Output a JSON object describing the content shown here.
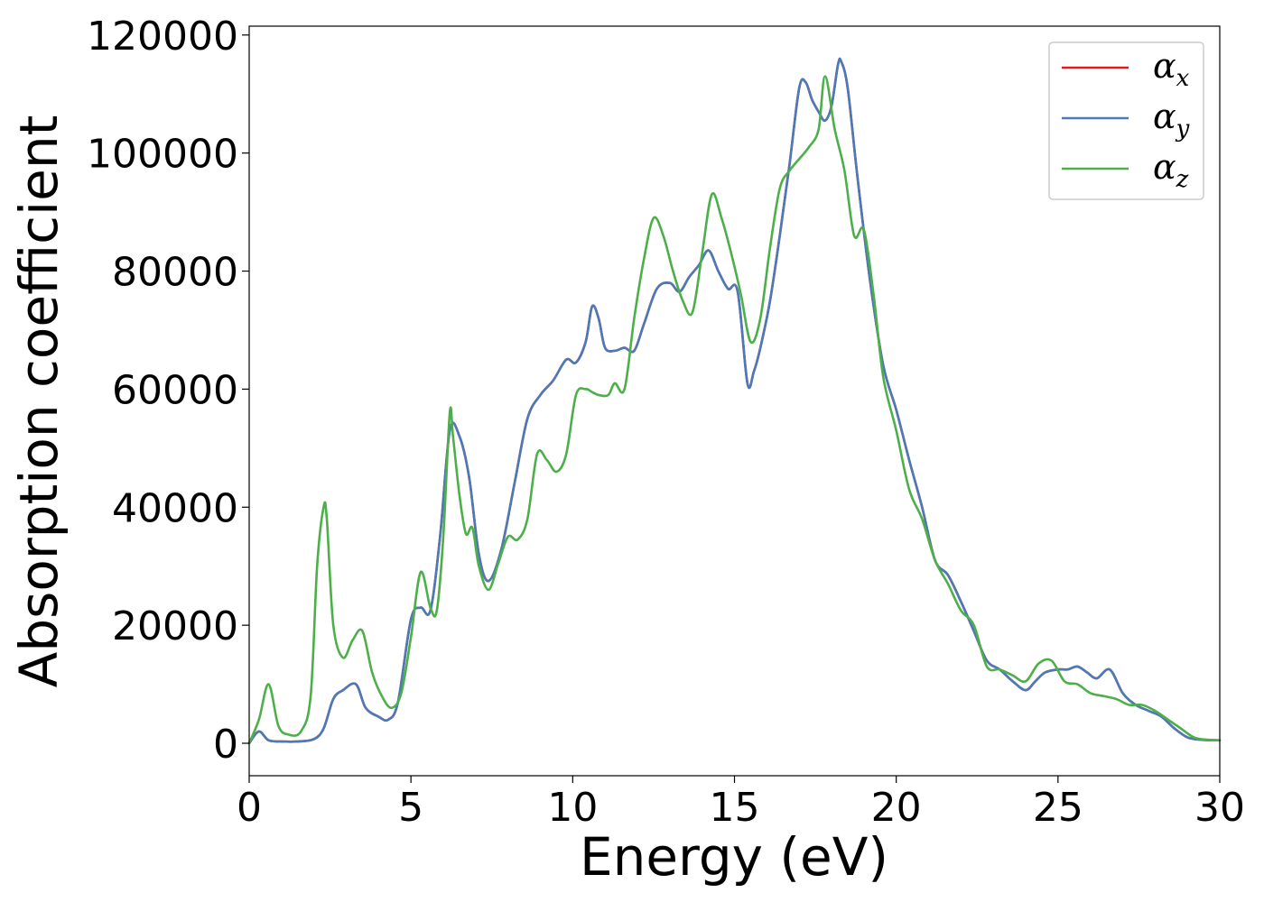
{
  "chart_data": {
    "type": "line",
    "title": "",
    "xlabel": "Energy (eV)",
    "ylabel": "Absorption coefficient",
    "xlim": [
      0,
      30
    ],
    "ylim": [
      -5500,
      121500
    ],
    "xticks": [
      0,
      5,
      10,
      15,
      20,
      25,
      30
    ],
    "yticks": [
      0,
      20000,
      40000,
      60000,
      80000,
      100000,
      120000
    ],
    "grid": false,
    "legend_position": "top-right",
    "series": [
      {
        "name": "αx",
        "symbol": "α",
        "subscript": "x",
        "color": "#e41a1c",
        "x": [
          0,
          0.3,
          0.6,
          1.0,
          1.5,
          2.0,
          2.3,
          2.6,
          2.9,
          3.3,
          3.6,
          4.0,
          4.3,
          4.6,
          5.0,
          5.3,
          5.6,
          5.9,
          6.2,
          6.5,
          6.8,
          7.1,
          7.4,
          7.8,
          8.2,
          8.6,
          9.0,
          9.4,
          9.8,
          10.1,
          10.4,
          10.6,
          10.8,
          11.0,
          11.3,
          11.6,
          11.9,
          12.2,
          12.6,
          13.0,
          13.3,
          13.6,
          13.9,
          14.2,
          14.5,
          14.8,
          15.1,
          15.4,
          15.6,
          15.8,
          16.1,
          16.4,
          16.7,
          17.0,
          17.2,
          17.4,
          17.6,
          17.8,
          18.0,
          18.2,
          18.3,
          18.5,
          18.8,
          19.2,
          19.6,
          20.0,
          20.4,
          20.8,
          21.2,
          21.6,
          22.0,
          22.4,
          22.8,
          23.2,
          23.6,
          24.0,
          24.3,
          24.6,
          25.0,
          25.3,
          25.6,
          25.9,
          26.2,
          26.6,
          27.0,
          27.4,
          27.8,
          28.2,
          28.6,
          29.0,
          29.4,
          30.0
        ],
        "y": [
          0,
          2000,
          500,
          300,
          300,
          700,
          2500,
          7500,
          9000,
          10000,
          6000,
          4500,
          4000,
          7000,
          21000,
          23000,
          22500,
          35000,
          53000,
          52000,
          45000,
          32000,
          27500,
          33000,
          44000,
          55000,
          59000,
          61500,
          65000,
          64500,
          68000,
          74000,
          72000,
          67000,
          66500,
          67000,
          66500,
          71000,
          77000,
          78000,
          76500,
          79000,
          81000,
          83500,
          80000,
          77000,
          76500,
          61000,
          63000,
          67000,
          75000,
          86000,
          98000,
          111000,
          112000,
          109000,
          107000,
          105500,
          108000,
          115000,
          115500,
          111000,
          96000,
          78000,
          64000,
          56500,
          48000,
          40000,
          31000,
          28500,
          24000,
          19000,
          14000,
          12500,
          10500,
          9000,
          10500,
          12000,
          12500,
          12500,
          13000,
          12000,
          11000,
          12500,
          8500,
          6500,
          5500,
          4500,
          2500,
          1000,
          600,
          500
        ]
      },
      {
        "name": "αy",
        "symbol": "α",
        "subscript": "y",
        "color": "#4a7ab7",
        "x": [
          0,
          0.3,
          0.6,
          1.0,
          1.5,
          2.0,
          2.3,
          2.6,
          2.9,
          3.3,
          3.6,
          4.0,
          4.3,
          4.6,
          5.0,
          5.3,
          5.6,
          5.9,
          6.2,
          6.5,
          6.8,
          7.1,
          7.4,
          7.8,
          8.2,
          8.6,
          9.0,
          9.4,
          9.8,
          10.1,
          10.4,
          10.6,
          10.8,
          11.0,
          11.3,
          11.6,
          11.9,
          12.2,
          12.6,
          13.0,
          13.3,
          13.6,
          13.9,
          14.2,
          14.5,
          14.8,
          15.1,
          15.4,
          15.6,
          15.8,
          16.1,
          16.4,
          16.7,
          17.0,
          17.2,
          17.4,
          17.6,
          17.8,
          18.0,
          18.2,
          18.3,
          18.5,
          18.8,
          19.2,
          19.6,
          20.0,
          20.4,
          20.8,
          21.2,
          21.6,
          22.0,
          22.4,
          22.8,
          23.2,
          23.6,
          24.0,
          24.3,
          24.6,
          25.0,
          25.3,
          25.6,
          25.9,
          26.2,
          26.6,
          27.0,
          27.4,
          27.8,
          28.2,
          28.6,
          29.0,
          29.4,
          30.0
        ],
        "y": [
          0,
          2000,
          500,
          300,
          300,
          700,
          2500,
          7500,
          9000,
          10000,
          6000,
          4500,
          4000,
          7000,
          21000,
          23000,
          22500,
          35000,
          53000,
          52000,
          45000,
          32000,
          27500,
          33000,
          44000,
          55000,
          59000,
          61500,
          65000,
          64500,
          68000,
          74000,
          72000,
          67000,
          66500,
          67000,
          66500,
          71000,
          77000,
          78000,
          76500,
          79000,
          81000,
          83500,
          80000,
          77000,
          76500,
          61000,
          63000,
          67000,
          75000,
          86000,
          98000,
          111000,
          112000,
          109000,
          107000,
          105500,
          108000,
          115000,
          115500,
          111000,
          96000,
          78000,
          64000,
          56500,
          48000,
          40000,
          31000,
          28500,
          24000,
          19000,
          14000,
          12500,
          10500,
          9000,
          10500,
          12000,
          12500,
          12500,
          13000,
          12000,
          11000,
          12500,
          8500,
          6500,
          5500,
          4500,
          2500,
          1000,
          600,
          500
        ]
      },
      {
        "name": "αz",
        "symbol": "α",
        "subscript": "z",
        "color": "#4daf4a",
        "x": [
          0,
          0.3,
          0.6,
          0.9,
          1.2,
          1.6,
          1.9,
          2.1,
          2.3,
          2.4,
          2.6,
          2.9,
          3.2,
          3.5,
          3.8,
          4.1,
          4.4,
          4.7,
          5.0,
          5.3,
          5.6,
          5.8,
          6.0,
          6.2,
          6.3,
          6.5,
          6.7,
          6.9,
          7.1,
          7.4,
          7.7,
          8.0,
          8.3,
          8.6,
          8.9,
          9.2,
          9.5,
          9.8,
          10.1,
          10.4,
          10.6,
          10.8,
          11.1,
          11.3,
          11.6,
          11.9,
          12.2,
          12.5,
          12.8,
          13.1,
          13.4,
          13.7,
          14.0,
          14.3,
          14.6,
          14.9,
          15.2,
          15.5,
          15.8,
          16.1,
          16.4,
          16.7,
          17.0,
          17.3,
          17.6,
          17.8,
          18.1,
          18.4,
          18.7,
          19.0,
          19.3,
          19.6,
          20.0,
          20.4,
          20.8,
          21.2,
          21.6,
          22.0,
          22.4,
          22.8,
          23.2,
          23.6,
          24.0,
          24.4,
          24.8,
          25.2,
          25.6,
          26.0,
          26.4,
          26.8,
          27.2,
          27.6,
          28.0,
          28.4,
          28.8,
          29.2,
          29.6,
          30.0
        ],
        "y": [
          0,
          4000,
          10000,
          3000,
          1500,
          2000,
          8000,
          30000,
          40000,
          38000,
          20000,
          14500,
          17500,
          19000,
          12000,
          8000,
          6000,
          8500,
          18000,
          29000,
          23000,
          22500,
          35000,
          56000,
          52000,
          42000,
          35500,
          36500,
          30000,
          26000,
          30500,
          35000,
          34500,
          38000,
          49000,
          48000,
          46000,
          49000,
          59000,
          60000,
          59500,
          59000,
          59000,
          61000,
          60000,
          72000,
          82000,
          89000,
          86000,
          80000,
          75000,
          73000,
          83000,
          93000,
          89000,
          83000,
          76000,
          68000,
          72000,
          84000,
          94000,
          97000,
          99000,
          101000,
          104000,
          113000,
          104000,
          97000,
          86000,
          87000,
          76000,
          62000,
          53000,
          43000,
          38000,
          31000,
          27000,
          22500,
          20000,
          13000,
          12500,
          11500,
          10500,
          13500,
          14000,
          10500,
          10000,
          8500,
          8000,
          7500,
          6500,
          6500,
          5500,
          4000,
          2500,
          1000,
          600,
          500
        ]
      }
    ]
  }
}
